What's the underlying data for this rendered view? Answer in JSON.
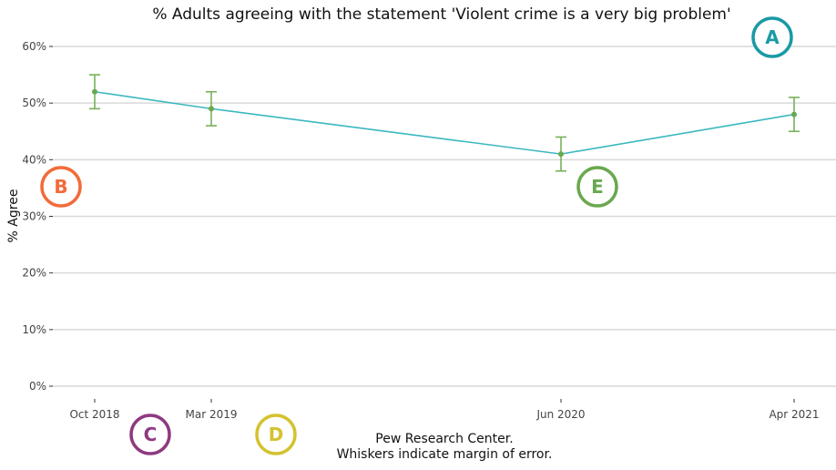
{
  "chart_data": {
    "type": "line",
    "title": "% Adults agreeing with the statement 'Violent crime is a very big problem'",
    "ylabel": "% Agree",
    "xlabel": "",
    "caption_lines": [
      "Pew Research Center.",
      "Whiskers indicate margin of error."
    ],
    "x_dates": [
      "2018-10",
      "2019-03",
      "2020-06",
      "2021-04"
    ],
    "x_labels": [
      "Oct 2018",
      "Mar 2019",
      "Jun 2020",
      "Apr 2021"
    ],
    "ylim": [
      0,
      60
    ],
    "yticks": [
      0,
      10,
      20,
      30,
      40,
      50,
      60
    ],
    "ytick_labels": [
      "0%",
      "10%",
      "20%",
      "30%",
      "40%",
      "50%",
      "60%"
    ],
    "series": [
      {
        "values": [
          52,
          49,
          41,
          48
        ],
        "lower": [
          49,
          46,
          38,
          45
        ],
        "upper": [
          55,
          52,
          44,
          51
        ]
      }
    ],
    "grid": true
  },
  "colors": {
    "line": "#3ab7bf",
    "points": "#6aa84f",
    "whiskers": "#78b05a"
  },
  "annotations": [
    {
      "label": "A",
      "color": "#1a9aa5"
    },
    {
      "label": "B",
      "color": "#f26b3a"
    },
    {
      "label": "C",
      "color": "#8e3a80"
    },
    {
      "label": "D",
      "color": "#d4c22f"
    },
    {
      "label": "E",
      "color": "#6aa84f"
    }
  ]
}
